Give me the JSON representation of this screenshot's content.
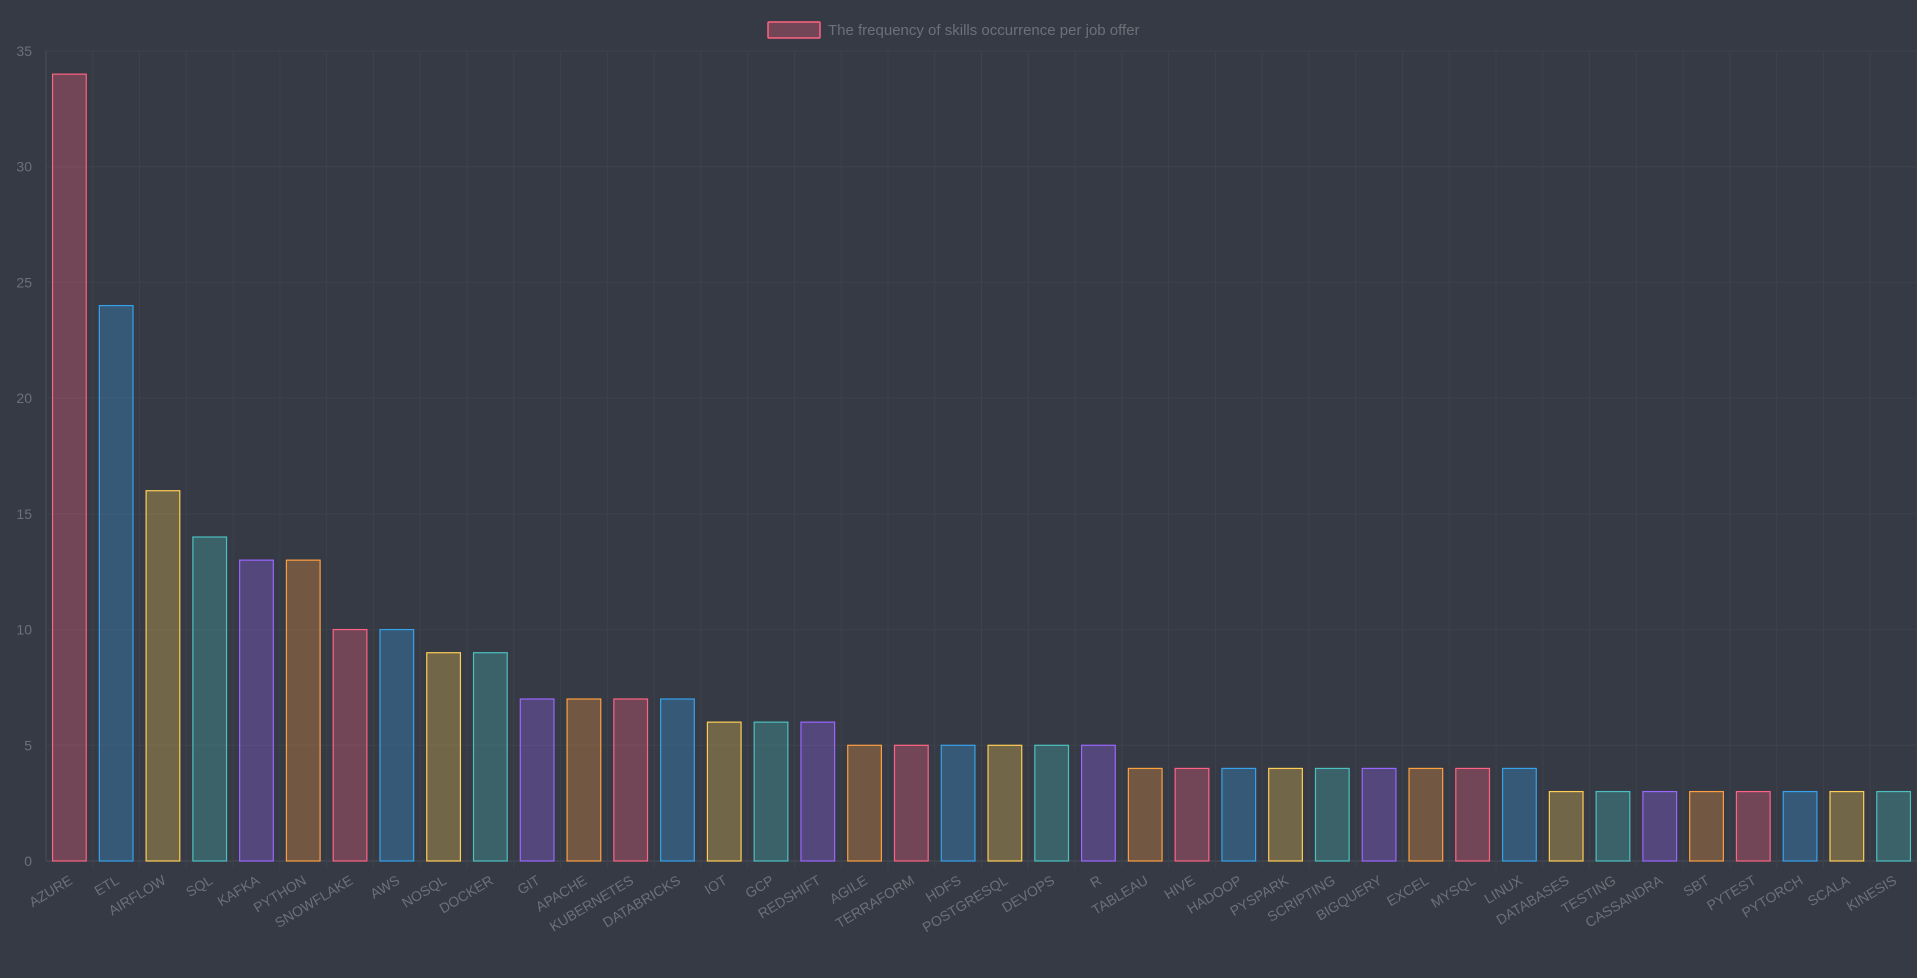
{
  "chart_data": {
    "type": "bar",
    "title": "",
    "xlabel": "",
    "ylabel": "",
    "ylim": [
      0,
      35
    ],
    "yticks": [
      "0",
      "5",
      "10",
      "15",
      "20",
      "25",
      "30",
      "35"
    ],
    "grid": true,
    "legend_position": "top-center",
    "categories": [
      "AZURE",
      "ETL",
      "AIRFLOW",
      "SQL",
      "KAFKA",
      "PYTHON",
      "SNOWFLAKE",
      "AWS",
      "NOSQL",
      "DOCKER",
      "GIT",
      "APACHE",
      "KUBERNETES",
      "DATABRICKS",
      "IOT",
      "GCP",
      "REDSHIFT",
      "AGILE",
      "TERRAFORM",
      "HDFS",
      "POSTGRESQL",
      "DEVOPS",
      "R",
      "TABLEAU",
      "HIVE",
      "HADOOP",
      "PYSPARK",
      "SCRIPTING",
      "BIGQUERY",
      "EXCEL",
      "MYSQL",
      "LINUX",
      "DATABASES",
      "TESTING",
      "CASSANDRA",
      "SBT",
      "PYTEST",
      "PYTORCH",
      "SCALA",
      "KINESIS"
    ],
    "series": [
      {
        "name": "The frequency of skills occurrence per job offer",
        "values": [
          34,
          24,
          16,
          14,
          13,
          13,
          10,
          10,
          9,
          9,
          7,
          7,
          7,
          7,
          6,
          6,
          6,
          5,
          5,
          5,
          5,
          5,
          5,
          4,
          4,
          4,
          4,
          4,
          4,
          4,
          4,
          4,
          3,
          3,
          3,
          3,
          3,
          3,
          3,
          3
        ]
      }
    ],
    "bar_colors": [
      "#ff6384",
      "#36a2eb",
      "#ffcd56",
      "#4bc0c0",
      "#9966ff",
      "#ff9f40"
    ],
    "legend_color": "#ff6384"
  }
}
